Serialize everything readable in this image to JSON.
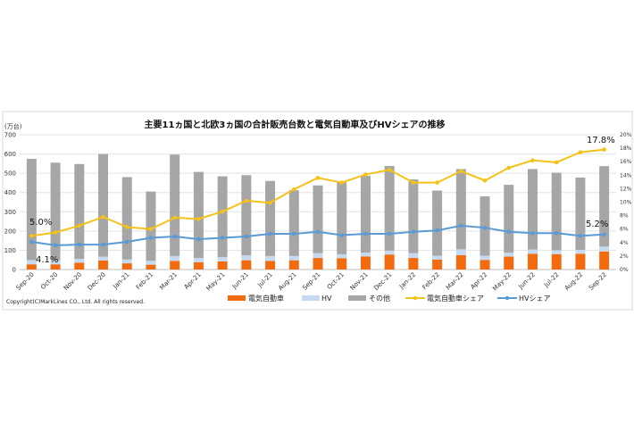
{
  "chart_data": {
    "type": "bar",
    "title": "主要11ヵ国と北欧3ヵ国の合計販売台数と電気自動車及びHVシェアの推移",
    "ylabel": "(万台)",
    "ylim": [
      0,
      700
    ],
    "yticks": [
      "0",
      "100",
      "200",
      "300",
      "400",
      "500",
      "600",
      "700"
    ],
    "y2lim": [
      0,
      20
    ],
    "y2ticks": [
      "0%",
      "2%",
      "4%",
      "6%",
      "8%",
      "10%",
      "12%",
      "14%",
      "16%",
      "18%",
      "20%"
    ],
    "grid": true,
    "legend_position": "bottom",
    "categories": [
      "Sep-20",
      "Oct-20",
      "Nov-20",
      "Dec-20",
      "Jan-21",
      "Feb-21",
      "Mar-21",
      "Apr-21",
      "May-21",
      "Jun-21",
      "Jul-21",
      "Aug-21",
      "Sep-21",
      "Oct-21",
      "Nov-21",
      "Dec-21",
      "Jan-22",
      "Feb-22",
      "Mar-22",
      "Apr-22",
      "May-22",
      "Jun-22",
      "Jul-22",
      "Aug-22",
      "Sep-22"
    ],
    "series": [
      {
        "name": "電気自動車",
        "type": "bar",
        "color": "#f26b0f",
        "values": [
          27,
          27,
          35,
          47,
          32,
          25,
          45,
          38,
          42,
          48,
          45,
          48,
          60,
          59,
          68,
          78,
          60,
          52,
          75,
          50,
          67,
          82,
          80,
          82,
          94
        ]
      },
      {
        "name": "HV",
        "type": "bar",
        "color": "#c5daf0",
        "values": [
          22,
          20,
          20,
          20,
          20,
          20,
          25,
          22,
          22,
          25,
          25,
          22,
          25,
          20,
          20,
          20,
          25,
          20,
          30,
          22,
          20,
          22,
          20,
          20,
          25
        ]
      },
      {
        "name": "その他",
        "type": "bar",
        "color": "#a6a6a6",
        "values": [
          526,
          508,
          493,
          533,
          428,
          360,
          527,
          447,
          420,
          417,
          390,
          342,
          352,
          374,
          399,
          440,
          383,
          338,
          417,
          308,
          353,
          418,
          403,
          376,
          418
        ]
      },
      {
        "name": "電気自動車シェア",
        "type": "line",
        "axis": "right",
        "color": "#f5c218",
        "values": [
          5.0,
          5.5,
          6.5,
          7.8,
          6.3,
          6.0,
          7.7,
          7.5,
          8.6,
          10.2,
          9.9,
          11.9,
          13.6,
          12.9,
          14.1,
          14.8,
          12.9,
          12.9,
          14.6,
          13.2,
          15.1,
          16.2,
          15.9,
          17.4,
          17.8
        ]
      },
      {
        "name": "HVシェア",
        "type": "line",
        "axis": "right",
        "color": "#5b9bd5",
        "values": [
          4.1,
          3.6,
          3.7,
          3.7,
          4.1,
          4.7,
          4.9,
          4.5,
          4.7,
          4.9,
          5.3,
          5.3,
          5.6,
          5.1,
          5.3,
          5.3,
          5.6,
          5.8,
          6.5,
          6.2,
          5.6,
          5.4,
          5.4,
          5.0,
          5.2
        ]
      }
    ],
    "annotations": [
      "5.0%",
      "4.1%",
      "17.8%",
      "5.2%"
    ],
    "copyright": "Copyright(C)MarkLines CO., Ltd. All rights reserved."
  }
}
